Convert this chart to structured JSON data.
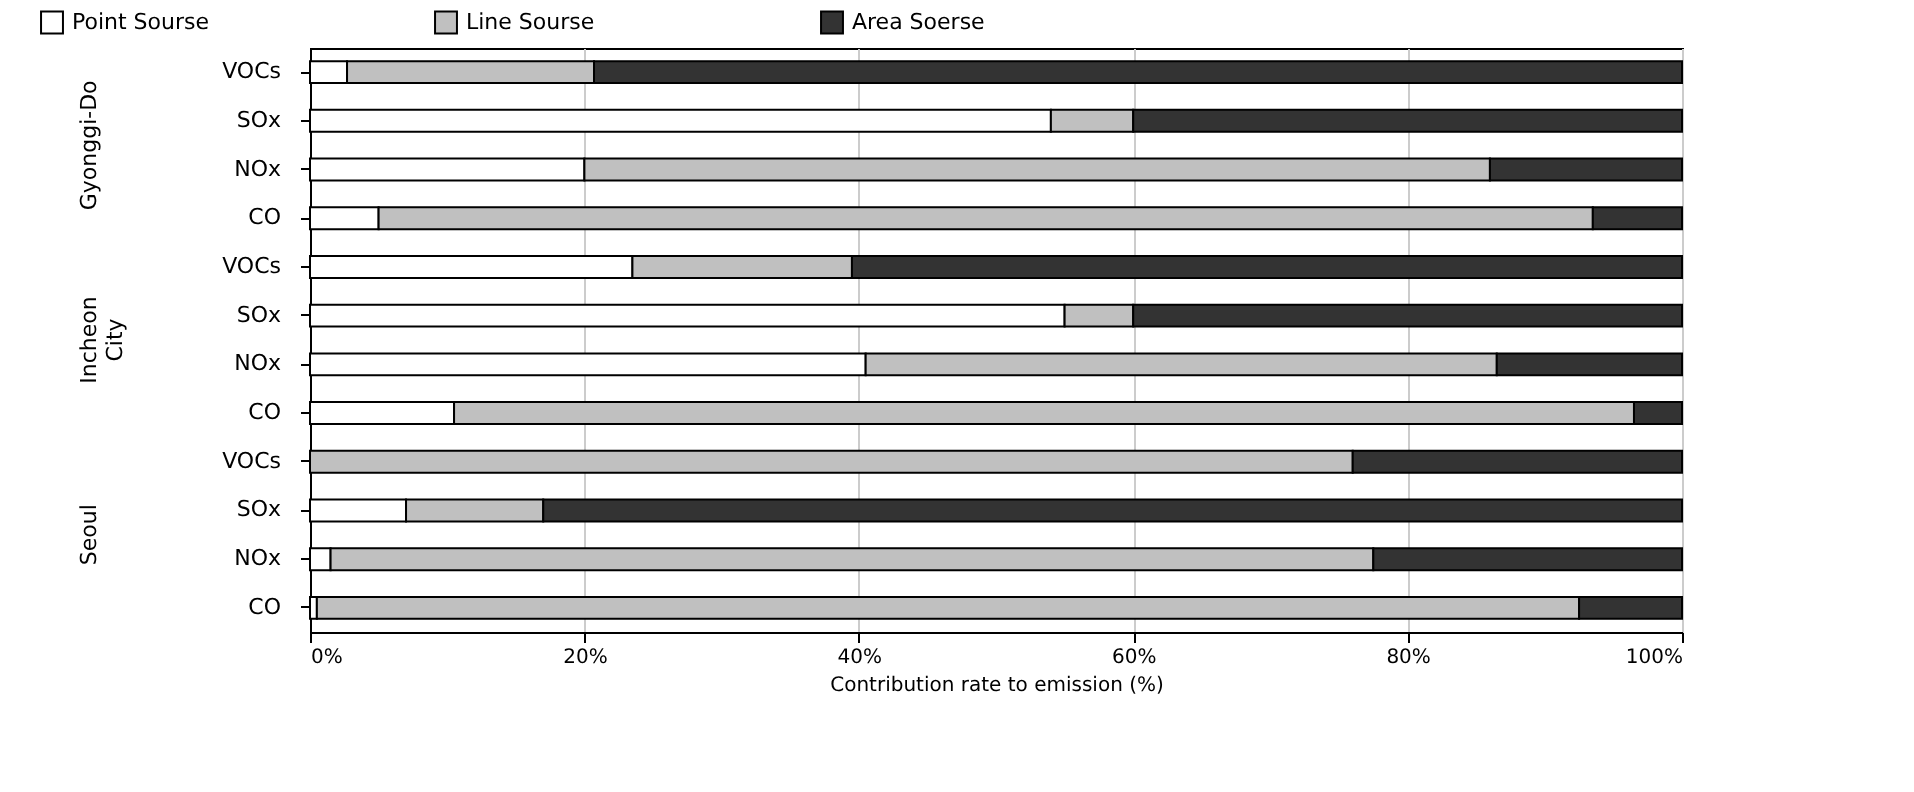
{
  "chart_data": {
    "type": "bar",
    "orientation": "horizontal",
    "stacked": true,
    "categories": [
      "VOCs",
      "SOx",
      "NOx",
      "CO",
      "VOCs",
      "SOx",
      "NOx",
      "CO",
      "VOCs",
      "SOx",
      "NOx",
      "CO"
    ],
    "series": [
      {
        "name": "Point Sourse",
        "color": "#ffffff",
        "values": [
          2.7,
          54,
          20,
          5,
          23.5,
          55,
          40.5,
          10.5,
          0,
          7,
          1.5,
          0.5
        ]
      },
      {
        "name": "Line Sourse",
        "color": "#c0c0c0",
        "values": [
          18,
          6,
          66,
          88.5,
          16,
          5,
          46,
          86,
          76,
          10,
          76,
          92
        ]
      },
      {
        "name": "Area Soerse",
        "color": "#333333",
        "values": [
          79.3,
          40,
          14,
          6.5,
          60.5,
          40,
          13.5,
          3.5,
          24,
          83,
          22.5,
          7.5
        ]
      }
    ],
    "xlim": [
      0,
      100
    ],
    "xticks": [
      {
        "value": 0,
        "label": "0%"
      },
      {
        "value": 20,
        "label": "20%"
      },
      {
        "value": 40,
        "label": "40%"
      },
      {
        "value": 60,
        "label": "60%"
      },
      {
        "value": 80,
        "label": "80%"
      },
      {
        "value": 100,
        "label": "100%"
      }
    ],
    "xlabel": "Contribution rate to emission (%)",
    "annotations": [
      "Gyonggi-Do",
      "Incheon City",
      "Seoul"
    ],
    "grid": "x",
    "legend": "top"
  }
}
